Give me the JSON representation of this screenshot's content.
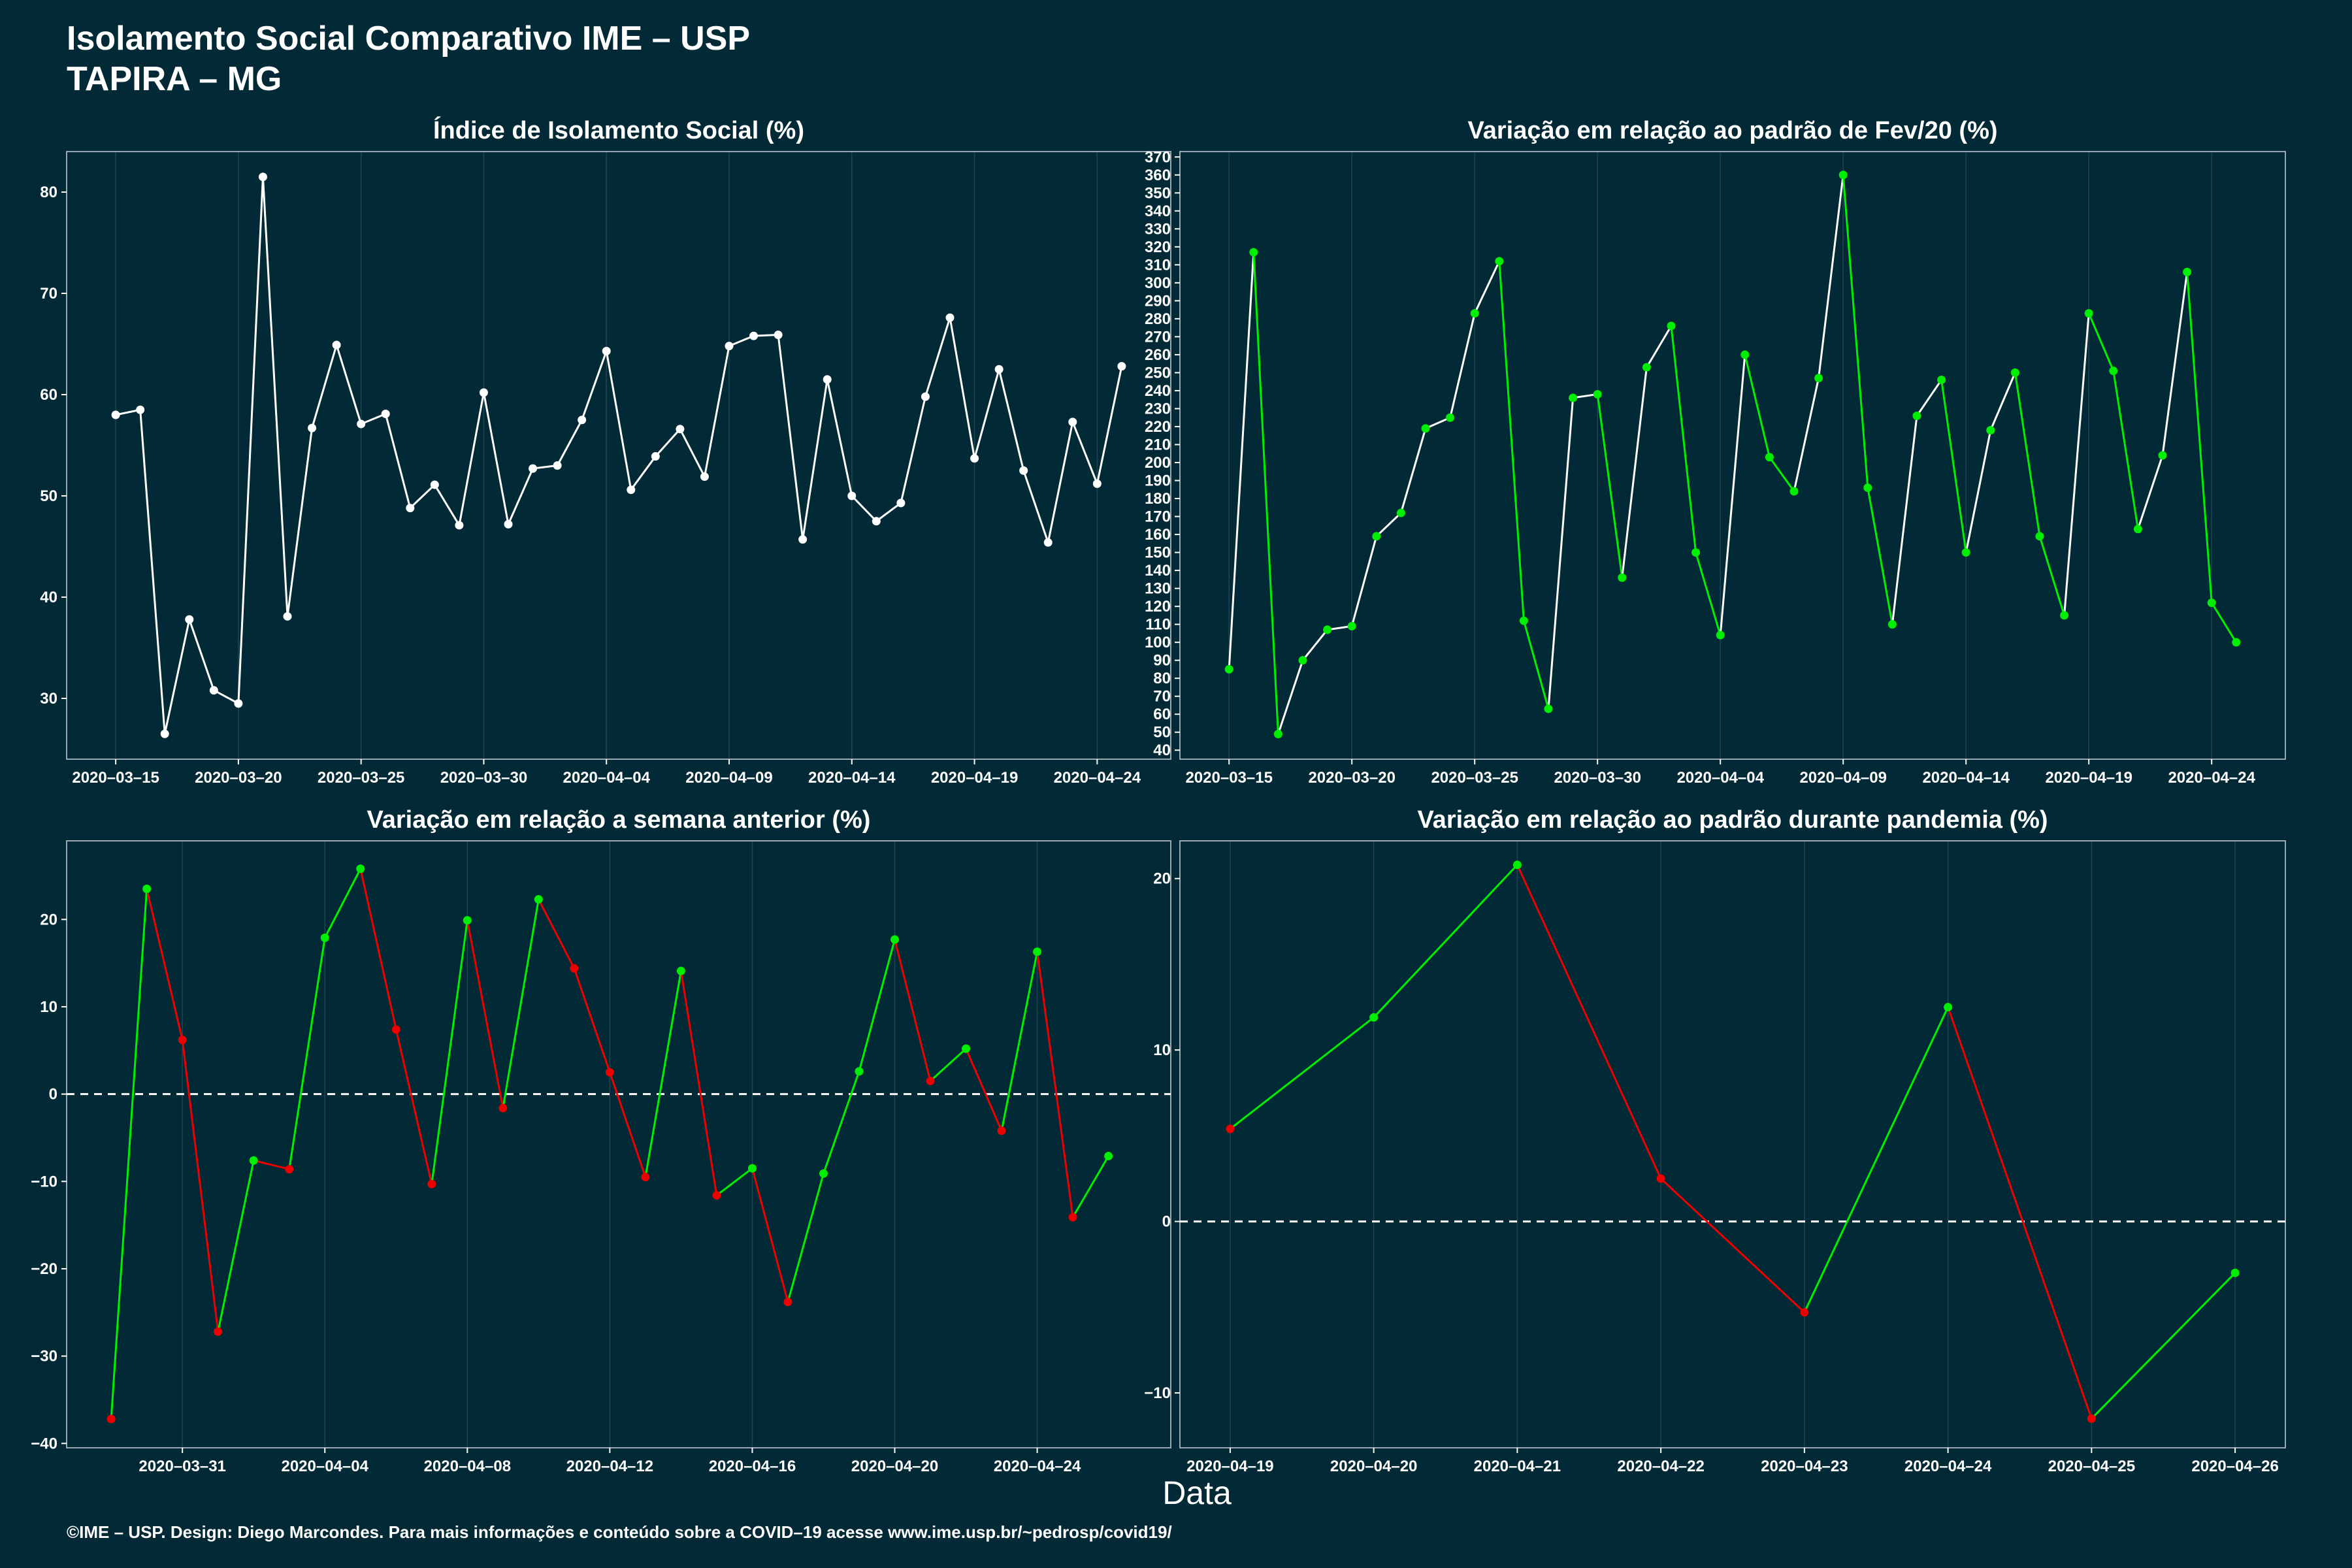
{
  "header": {
    "title_line1": "Isolamento Social Comparativo IME – USP",
    "title_line2": "TAPIRA – MG"
  },
  "footer": {
    "text": "©IME – USP. Design: Diego Marcondes. Para mais informações e conteúdo sobre a COVID–19 acesse www.ime.usp.br/~pedrosp/covid19/"
  },
  "xlabel": "Data",
  "colors": {
    "background": "#012a36",
    "line_white": "#ffffff",
    "up": "#00ee00",
    "down": "#ee0000"
  },
  "chart_data": [
    {
      "type": "line",
      "title": "Índice de Isolamento Social (%)",
      "color_mode": "white",
      "x_start": "2020-03-15",
      "ylim": [
        24,
        84
      ],
      "yticks": [
        30,
        40,
        50,
        60,
        70,
        80
      ],
      "x_ticks": [
        "2020-03-15",
        "2020-03-20",
        "2020-03-25",
        "2020-03-30",
        "2020-04-04",
        "2020-04-09",
        "2020-04-14",
        "2020-04-19",
        "2020-04-24"
      ],
      "grid_days": [
        0,
        5,
        10,
        15,
        20,
        25,
        30,
        35,
        40
      ],
      "xlim_days": [
        -2,
        43
      ],
      "series": [
        {
          "x": [
            "2020-03-15",
            "2020-03-16",
            "2020-03-17",
            "2020-03-18",
            "2020-03-19",
            "2020-03-20",
            "2020-03-21",
            "2020-03-22",
            "2020-03-23",
            "2020-03-24",
            "2020-03-25",
            "2020-03-26",
            "2020-03-27",
            "2020-03-28",
            "2020-03-29",
            "2020-03-30",
            "2020-03-31",
            "2020-04-01",
            "2020-04-02",
            "2020-04-03",
            "2020-04-04",
            "2020-04-05",
            "2020-04-06",
            "2020-04-07",
            "2020-04-08",
            "2020-04-09",
            "2020-04-10",
            "2020-04-11",
            "2020-04-12",
            "2020-04-13",
            "2020-04-14",
            "2020-04-15",
            "2020-04-16",
            "2020-04-17",
            "2020-04-18",
            "2020-04-19",
            "2020-04-20",
            "2020-04-21",
            "2020-04-22",
            "2020-04-23",
            "2020-04-24",
            "2020-04-25",
            "2020-04-26"
          ],
          "values": [
            58.0,
            58.5,
            26.5,
            37.8,
            30.8,
            29.5,
            81.5,
            38.1,
            56.7,
            64.9,
            57.1,
            58.1,
            48.8,
            51.1,
            47.1,
            60.2,
            47.2,
            52.7,
            53.0,
            57.5,
            64.3,
            50.6,
            53.9,
            56.6,
            51.9,
            64.8,
            65.8,
            65.9,
            45.7,
            61.5,
            50.0,
            47.5,
            49.3,
            59.8,
            67.6,
            53.7,
            62.5,
            52.5,
            45.4,
            57.3,
            51.2,
            62.8,
            null
          ]
        }
      ]
    },
    {
      "type": "line",
      "title": "Variação em relação ao padrão de Fev/20 (%)",
      "color_mode": "green_white",
      "ylim": [
        35,
        373
      ],
      "yticks": [
        40,
        50,
        60,
        70,
        80,
        90,
        100,
        110,
        120,
        130,
        140,
        150,
        160,
        170,
        180,
        190,
        200,
        210,
        220,
        230,
        240,
        250,
        260,
        270,
        280,
        290,
        300,
        310,
        320,
        330,
        340,
        350,
        360,
        370
      ],
      "x_ticks": [
        "2020-03-15",
        "2020-03-20",
        "2020-03-25",
        "2020-03-30",
        "2020-04-04",
        "2020-04-09",
        "2020-04-14",
        "2020-04-19",
        "2020-04-24"
      ],
      "grid_days": [
        0,
        5,
        10,
        15,
        20,
        25,
        30,
        35,
        40
      ],
      "xlim_days": [
        -2,
        43
      ],
      "series": [
        {
          "x": [
            "2020-03-15",
            "2020-03-16",
            "2020-03-17",
            "2020-03-18",
            "2020-03-19",
            "2020-03-20",
            "2020-03-21",
            "2020-03-22",
            "2020-03-23",
            "2020-03-24",
            "2020-03-25",
            "2020-03-26",
            "2020-03-27",
            "2020-03-28",
            "2020-03-29",
            "2020-03-30",
            "2020-03-31",
            "2020-04-01",
            "2020-04-02",
            "2020-04-03",
            "2020-04-04",
            "2020-04-05",
            "2020-04-06",
            "2020-04-07",
            "2020-04-08",
            "2020-04-09",
            "2020-04-10",
            "2020-04-11",
            "2020-04-12",
            "2020-04-13",
            "2020-04-14",
            "2020-04-15",
            "2020-04-16",
            "2020-04-17",
            "2020-04-18",
            "2020-04-19",
            "2020-04-20",
            "2020-04-21",
            "2020-04-22",
            "2020-04-23",
            "2020-04-24",
            "2020-04-25",
            "2020-04-26"
          ],
          "values": [
            85,
            317,
            49,
            90,
            107,
            109,
            159,
            172,
            219,
            225,
            283,
            312,
            112,
            63,
            236,
            238,
            136,
            253,
            276,
            150,
            104,
            260,
            203,
            184,
            247,
            360,
            186,
            110,
            226,
            246,
            150,
            218,
            250,
            159,
            115,
            283,
            251,
            163,
            204,
            306,
            122,
            100,
            null
          ]
        }
      ]
    },
    {
      "type": "line",
      "title": "Variação em relação a semana anterior (%)",
      "color_mode": "red_green",
      "ylim": [
        -40.5,
        29
      ],
      "yticks": [
        -40,
        -30,
        -20,
        -10,
        0,
        10,
        20
      ],
      "zero_line": true,
      "x_ticks": [
        "2020-03-31",
        "2020-04-04",
        "2020-04-08",
        "2020-04-12",
        "2020-04-16",
        "2020-04-20",
        "2020-04-24"
      ],
      "grid_days": [
        16,
        20,
        24,
        28,
        32,
        36,
        40
      ],
      "xlim_days": [
        12.75,
        43.75
      ],
      "series": [
        {
          "x": [
            "2020-03-29",
            "2020-03-30",
            "2020-03-31",
            "2020-04-01",
            "2020-04-02",
            "2020-04-03",
            "2020-04-04",
            "2020-04-05",
            "2020-04-06",
            "2020-04-07",
            "2020-04-08",
            "2020-04-09",
            "2020-04-10",
            "2020-04-11",
            "2020-04-12",
            "2020-04-13",
            "2020-04-14",
            "2020-04-15",
            "2020-04-16",
            "2020-04-17",
            "2020-04-18",
            "2020-04-19",
            "2020-04-20",
            "2020-04-21",
            "2020-04-22",
            "2020-04-23",
            "2020-04-24",
            "2020-04-25",
            "2020-04-26"
          ],
          "values": [
            -37.2,
            23.5,
            6.2,
            -27.2,
            -7.6,
            -8.6,
            17.9,
            25.8,
            7.4,
            -10.3,
            19.9,
            -1.6,
            22.3,
            14.4,
            2.5,
            -9.5,
            14.1,
            -11.6,
            -8.5,
            -23.8,
            -9.1,
            2.6,
            17.7,
            1.5,
            5.2,
            -4.2,
            16.3,
            -14.1,
            -7.1
          ]
        }
      ]
    },
    {
      "type": "line",
      "title": "Variação em relação ao padrão durante pandemia (%)",
      "color_mode": "red_green",
      "ylim": [
        -13.2,
        22.2
      ],
      "yticks": [
        -10,
        0,
        10,
        20
      ],
      "zero_line": true,
      "x_ticks": [
        "2020-04-19",
        "2020-04-20",
        "2020-04-21",
        "2020-04-22",
        "2020-04-23",
        "2020-04-24",
        "2020-04-25",
        "2020-04-26"
      ],
      "grid_days": [
        35,
        36,
        37,
        38,
        39,
        40,
        41,
        42
      ],
      "xlim_days": [
        34.65,
        42.35
      ],
      "series": [
        {
          "x": [
            "2020-04-19",
            "2020-04-20",
            "2020-04-21",
            "2020-04-22",
            "2020-04-23",
            "2020-04-24",
            "2020-04-25",
            "2020-04-26"
          ],
          "values": [
            5.4,
            11.9,
            20.8,
            2.5,
            -5.3,
            12.5,
            -11.5,
            -3.0
          ]
        }
      ]
    }
  ]
}
